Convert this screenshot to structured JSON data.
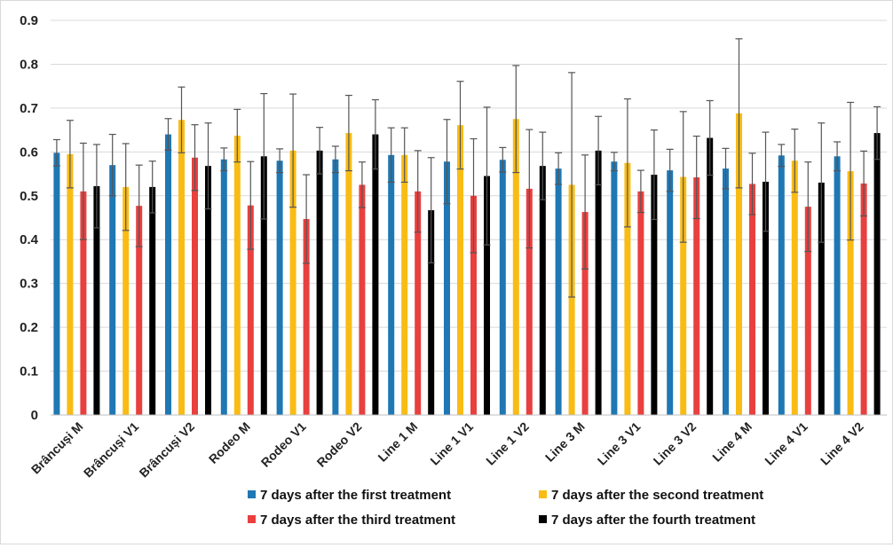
{
  "chart_data": {
    "type": "bar",
    "title": "",
    "xlabel": "",
    "ylabel": "",
    "ylim": [
      0,
      0.9
    ],
    "yticks": [
      "0",
      "0.1",
      "0.2",
      "0.3",
      "0.4",
      "0.5",
      "0.6",
      "0.7",
      "0.8",
      "0.9"
    ],
    "grid": true,
    "legend_position": "bottom",
    "categories": [
      "Brâncuși M",
      "Brâncuși V1",
      "Brâncuși V2",
      "Rodeo M",
      "Rodeo V1",
      "Rodeo V2",
      "Line 1 M",
      "Line 1 V1",
      "Line 1 V2",
      "Line 3 M",
      "Line 3 V1",
      "Line 3 V2",
      "Line 4 M",
      "Line 4 V1",
      "Line 4 V2"
    ],
    "series": [
      {
        "name": "7 days after the first treatment",
        "color": "#1f77b4",
        "values": [
          0.598,
          0.57,
          0.64,
          0.583,
          0.58,
          0.583,
          0.593,
          0.578,
          0.582,
          0.562,
          0.578,
          0.558,
          0.562,
          0.592,
          0.59
        ],
        "errors": [
          0.03,
          0.07,
          0.036,
          0.026,
          0.027,
          0.03,
          0.062,
          0.096,
          0.028,
          0.036,
          0.021,
          0.048,
          0.046,
          0.025,
          0.033
        ]
      },
      {
        "name": "7 days after the second treatment",
        "color": "#f9bc15",
        "values": [
          0.595,
          0.52,
          0.673,
          0.637,
          0.603,
          0.643,
          0.593,
          0.661,
          0.675,
          0.525,
          0.575,
          0.543,
          0.688,
          0.58,
          0.556
        ],
        "errors": [
          0.077,
          0.099,
          0.075,
          0.06,
          0.129,
          0.086,
          0.062,
          0.1,
          0.122,
          0.256,
          0.146,
          0.149,
          0.17,
          0.072,
          0.157
        ]
      },
      {
        "name": "7 days after the third treatment",
        "color": "#e8403f",
        "values": [
          0.51,
          0.477,
          0.587,
          0.478,
          0.447,
          0.525,
          0.51,
          0.5,
          0.516,
          0.463,
          0.51,
          0.542,
          0.527,
          0.475,
          0.528
        ],
        "errors": [
          0.11,
          0.093,
          0.075,
          0.1,
          0.101,
          0.052,
          0.093,
          0.13,
          0.135,
          0.13,
          0.048,
          0.094,
          0.07,
          0.102,
          0.074
        ]
      },
      {
        "name": "7 days after the fourth treatment",
        "color": "#000000",
        "values": [
          0.522,
          0.52,
          0.568,
          0.59,
          0.603,
          0.64,
          0.467,
          0.545,
          0.568,
          0.603,
          0.548,
          0.632,
          0.532,
          0.53,
          0.643
        ],
        "errors": [
          0.095,
          0.059,
          0.098,
          0.143,
          0.053,
          0.079,
          0.12,
          0.157,
          0.077,
          0.078,
          0.102,
          0.085,
          0.113,
          0.136,
          0.06
        ]
      }
    ]
  }
}
